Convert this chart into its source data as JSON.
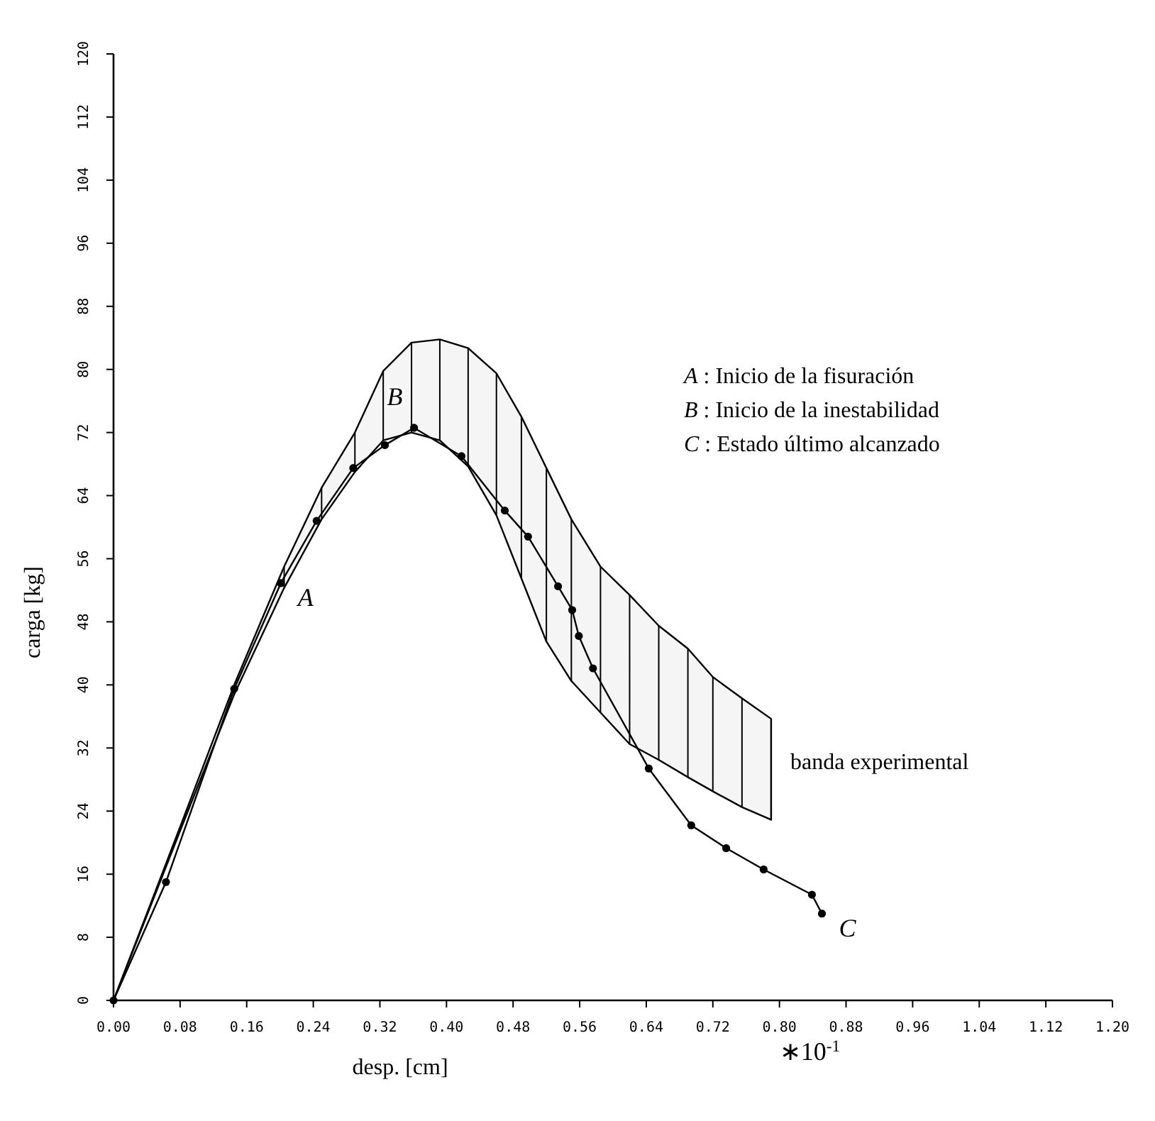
{
  "chart_data": {
    "type": "line",
    "xlabel": "desp. [cm]",
    "ylabel": "carga [kg]",
    "xlim": [
      0,
      1.2
    ],
    "ylim": [
      0,
      120
    ],
    "xticks": [
      {
        "value": 0,
        "label": "0.00"
      },
      {
        "value": 0.08,
        "label": "0.08"
      },
      {
        "value": 0.16,
        "label": "0.16"
      },
      {
        "value": 0.24,
        "label": "0.24"
      },
      {
        "value": 0.32,
        "label": "0.32"
      },
      {
        "value": 0.4,
        "label": "0.40"
      },
      {
        "value": 0.48,
        "label": "0.48"
      },
      {
        "value": 0.56,
        "label": "0.56"
      },
      {
        "value": 0.64,
        "label": "0.64"
      },
      {
        "value": 0.72,
        "label": "0.72"
      },
      {
        "value": 0.8,
        "label": "0.80"
      },
      {
        "value": 0.88,
        "label": "0.88"
      },
      {
        "value": 0.96,
        "label": "0.96"
      },
      {
        "value": 1.04,
        "label": "1.04"
      },
      {
        "value": 1.12,
        "label": "1.12"
      },
      {
        "value": 1.2,
        "label": "1.20"
      }
    ],
    "yticks": [
      0,
      8,
      16,
      24,
      32,
      40,
      48,
      56,
      64,
      72,
      80,
      88,
      96,
      104,
      112,
      120
    ],
    "grid": false,
    "series": [
      {
        "type": "area",
        "color": "#000000",
        "x": [
          0,
          0.08,
          0.145,
          0.205,
          0.25,
          0.29,
          0.324,
          0.358,
          0.392,
          0.426,
          0.46,
          0.49,
          0.52,
          0.55,
          0.585,
          0.62,
          0.655,
          0.69,
          0.72,
          0.755,
          0.79
        ],
        "values": [
          null,
          null,
          null,
          null,
          null,
          null,
          null,
          null,
          null,
          null,
          null,
          null,
          null,
          null,
          null,
          null,
          null,
          null,
          null,
          null,
          null
        ],
        "lower": [
          0,
          21.5,
          38.8,
          52.3,
          61,
          67,
          71,
          72,
          71,
          67.7,
          61.5,
          53.5,
          45.5,
          40.5,
          36.5,
          32.5,
          30.5,
          28.3,
          26.5,
          24.5,
          22.9
        ],
        "upper": [
          0,
          22,
          40,
          55,
          65,
          72,
          79.8,
          83.4,
          83.8,
          82.7,
          79.5,
          74,
          67.5,
          61,
          55,
          51.4,
          47.5,
          44.6,
          41,
          38.3,
          35.7
        ]
      },
      {
        "color": "#000000",
        "marker": "circle",
        "line_style": "solid",
        "x": [
          0,
          0.063,
          0.145,
          0.201,
          0.244,
          0.288,
          0.326,
          0.361,
          0.418,
          0.47,
          0.498,
          0.534,
          0.551,
          0.559,
          0.576,
          0.643,
          0.694,
          0.736,
          0.781,
          0.839,
          0.851
        ],
        "values": [
          0,
          15,
          39.5,
          52.9,
          60.8,
          67.5,
          70.4,
          72.6,
          69,
          62.1,
          58.8,
          52.5,
          49.5,
          46.2,
          42.1,
          29.4,
          22.2,
          19.3,
          16.6,
          13.4,
          11
        ]
      }
    ],
    "annotations": [
      {
        "text": "A",
        "x": 0.201,
        "y": 52.9
      },
      {
        "text": "B",
        "x": 0.361,
        "y": 72.6
      },
      {
        "text": "C",
        "x": 0.851,
        "y": 11
      },
      "banda experimental",
      "A : Inicio de la fisuración",
      "B : Inicio de la inestabilidad",
      "C : Estado último alcanzado",
      "∗10$^{-1}$"
    ]
  }
}
